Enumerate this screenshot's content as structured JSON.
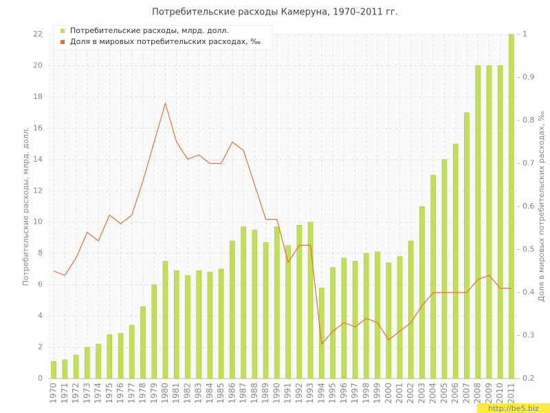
{
  "chart_data": {
    "type": "bar",
    "title": "Потребительские расходы Камеруна, 1970–2011 гг.",
    "categories": [
      "1970",
      "1971",
      "1972",
      "1973",
      "1974",
      "1975",
      "1976",
      "1977",
      "1978",
      "1979",
      "1980",
      "1981",
      "1982",
      "1983",
      "1984",
      "1985",
      "1986",
      "1987",
      "1988",
      "1989",
      "1990",
      "1991",
      "1992",
      "1993",
      "1994",
      "1995",
      "1996",
      "1997",
      "1998",
      "1999",
      "2000",
      "2001",
      "2002",
      "2003",
      "2004",
      "2005",
      "2006",
      "2007",
      "2008",
      "2009",
      "2010",
      "2011"
    ],
    "series": [
      {
        "name": "Потребительские расходы, млрд. долл.",
        "type": "bar",
        "color": "#c3df56",
        "values": [
          1.1,
          1.2,
          1.5,
          2.0,
          2.2,
          2.8,
          2.9,
          3.4,
          4.6,
          6.0,
          7.5,
          6.9,
          6.6,
          6.9,
          6.8,
          7.0,
          8.8,
          9.7,
          9.5,
          8.7,
          9.7,
          8.5,
          9.8,
          10.0,
          5.8,
          7.1,
          7.7,
          7.5,
          8.0,
          8.1,
          7.4,
          7.8,
          8.8,
          11.0,
          13.0,
          14.0,
          15.0,
          17.0,
          20.0,
          20.0,
          20.0,
          22.0
        ]
      },
      {
        "name": "Доля в мировых потребительских расходах, ‰",
        "type": "line",
        "color": "#e0703a",
        "axis": "y2",
        "values": [
          0.45,
          0.44,
          0.48,
          0.54,
          0.52,
          0.58,
          0.56,
          0.58,
          0.66,
          0.75,
          0.84,
          0.75,
          0.71,
          0.72,
          0.7,
          0.7,
          0.75,
          0.73,
          0.65,
          0.57,
          0.57,
          0.47,
          0.51,
          0.51,
          0.28,
          0.31,
          0.33,
          0.32,
          0.34,
          0.33,
          0.29,
          0.31,
          0.33,
          0.37,
          0.4,
          0.4,
          0.4,
          0.4,
          0.43,
          0.44,
          0.41,
          0.41
        ]
      }
    ],
    "ylabel": "Потребительские расходы, млрд. долл.",
    "y2label": "Доля в мировых потребительских расходах, ‰",
    "ylim": [
      0,
      22
    ],
    "yticks": [
      0,
      2,
      4,
      6,
      8,
      10,
      12,
      14,
      16,
      18,
      20,
      22
    ],
    "y2lim": [
      0.2,
      1
    ],
    "y2ticks": [
      0.2,
      0.3,
      0.4,
      0.5,
      0.6,
      0.7,
      0.8,
      0.9,
      1
    ],
    "grid": true,
    "legend": "upper left"
  },
  "watermark": "http://be5.biz"
}
